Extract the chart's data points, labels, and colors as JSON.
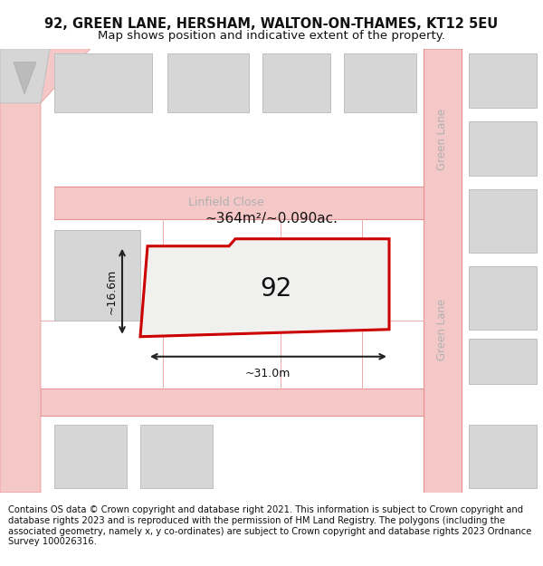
{
  "title": "92, GREEN LANE, HERSHAM, WALTON-ON-THAMES, KT12 5EU",
  "subtitle": "Map shows position and indicative extent of the property.",
  "footer": "Contains OS data © Crown copyright and database right 2021. This information is subject to Crown copyright and database rights 2023 and is reproduced with the permission of HM Land Registry. The polygons (including the associated geometry, namely x, y co-ordinates) are subject to Crown copyright and database rights 2023 Ordnance Survey 100026316.",
  "label_92": "92",
  "area_label": "~364m²/~0.090ac.",
  "width_label": "~31.0m",
  "height_label": "~16.6m",
  "street_label_gl_top": "Green Lane",
  "street_label_gl_bot": "Green Lane",
  "street_label_lf": "Linfield Close",
  "title_fontsize": 10.5,
  "subtitle_fontsize": 9.5,
  "footer_fontsize": 7.2,
  "map_bg": "#f7f7f2",
  "road_fill": "#f5c8c8",
  "road_stroke": "#e89090",
  "building_fill": "#d6d6d6",
  "building_edge": "#bfbfbf",
  "prop_fill": "#f0f0ee",
  "prop_edge": "#cc0000",
  "prop_lw": 2.2,
  "dim_color": "#222222",
  "street_color": "#b0b0b0",
  "text_color": "#111111"
}
